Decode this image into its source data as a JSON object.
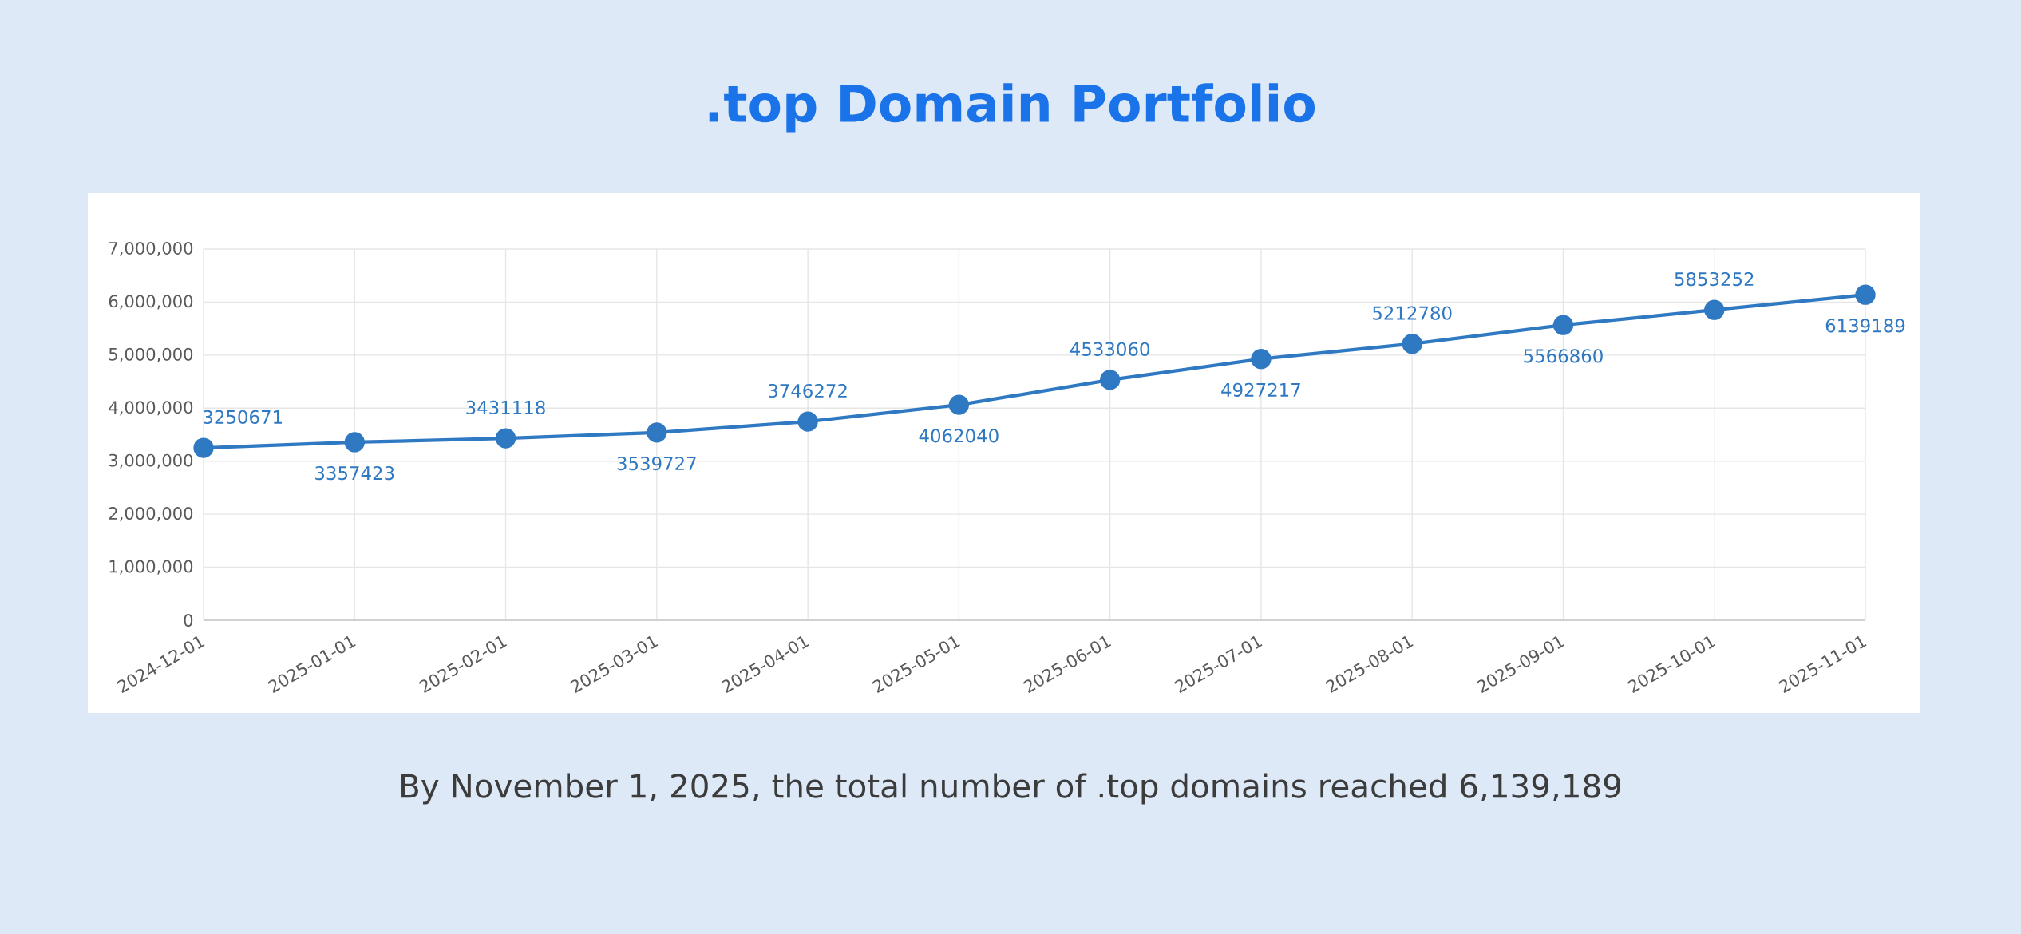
{
  "chart_data": {
    "type": "line",
    "title": ".top Domain Portfolio",
    "categories": [
      "2024-12-01",
      "2025-01-01",
      "2025-02-01",
      "2025-03-01",
      "2025-04-01",
      "2025-05-01",
      "2025-06-01",
      "2025-07-01",
      "2025-08-01",
      "2025-09-01",
      "2025-10-01",
      "2025-11-01"
    ],
    "series": [
      {
        "color": "#2f78c2",
        "values": [
          3250671,
          3357423,
          3431118,
          3539727,
          3746272,
          4062040,
          4533060,
          4927217,
          5212780,
          5566860,
          5853252,
          6139189
        ]
      }
    ],
    "ylim": [
      0,
      7000000
    ],
    "yticks": [
      0,
      {
        "value": 1000000,
        "label": "1,000,000"
      },
      {
        "value": 2000000,
        "label": "2,000,000"
      },
      {
        "value": 3000000,
        "label": "3,000,000"
      },
      {
        "value": 4000000,
        "label": "4,000,000"
      },
      {
        "value": 5000000,
        "label": "5,000,000"
      },
      {
        "value": 6000000,
        "label": "6,000,000"
      },
      {
        "value": 7000000,
        "label": "7,000,000"
      }
    ],
    "grid": true,
    "marker": "circle",
    "data_labels": true,
    "annotations": [
      "By November 1, 2025, the total number of .top domains reached 6,139,189"
    ]
  }
}
